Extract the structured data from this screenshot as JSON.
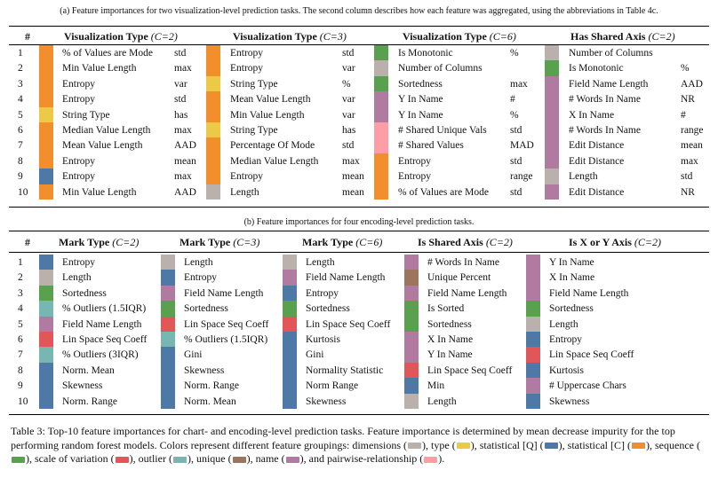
{
  "colors": {
    "dimensions": "#bab0ac",
    "type": "#edc948",
    "statistical_q": "#4e79a7",
    "statistical_c": "#f28e2b",
    "sequence": "#59a14f",
    "scale_of_variation": "#e15759",
    "outlier": "#76b7b2",
    "unique": "#9c755f",
    "name": "#b07aa1",
    "pairwise_relationship": "#ff9da7"
  },
  "table_a": {
    "caption": "(a) Feature importances for two visualization-level prediction tasks. The second column describes how each feature was aggregated, using the abbreviations in Table 4c.",
    "num_header": "#",
    "rank_labels": [
      "1",
      "2",
      "3",
      "4",
      "5",
      "6",
      "7",
      "8",
      "9",
      "10"
    ],
    "columns": [
      {
        "title": "Visualization Type",
        "param": "(C=2)",
        "rows": [
          {
            "c": "statistical_c",
            "f": "% of Values are Mode",
            "a": "std"
          },
          {
            "c": "statistical_c",
            "f": "Min Value Length",
            "a": "max"
          },
          {
            "c": "statistical_c",
            "f": "Entropy",
            "a": "var"
          },
          {
            "c": "statistical_c",
            "f": "Entropy",
            "a": "std"
          },
          {
            "c": "type",
            "f": "String Type",
            "a": "has"
          },
          {
            "c": "statistical_c",
            "f": "Median Value Length",
            "a": "max"
          },
          {
            "c": "statistical_c",
            "f": "Mean Value Length",
            "a": "AAD"
          },
          {
            "c": "statistical_c",
            "f": "Entropy",
            "a": "mean"
          },
          {
            "c": "statistical_q",
            "f": "Entropy",
            "a": "max"
          },
          {
            "c": "statistical_c",
            "f": "Min Value Length",
            "a": "AAD"
          }
        ]
      },
      {
        "title": "Visualization Type",
        "param": "(C=3)",
        "rows": [
          {
            "c": "statistical_c",
            "f": "Entropy",
            "a": "std"
          },
          {
            "c": "statistical_c",
            "f": "Entropy",
            "a": "var"
          },
          {
            "c": "type",
            "f": "String Type",
            "a": "%"
          },
          {
            "c": "statistical_c",
            "f": "Mean Value Length",
            "a": "var"
          },
          {
            "c": "statistical_c",
            "f": "Min Value Length",
            "a": "var"
          },
          {
            "c": "type",
            "f": "String Type",
            "a": "has"
          },
          {
            "c": "statistical_c",
            "f": "Percentage Of Mode",
            "a": "std"
          },
          {
            "c": "statistical_c",
            "f": "Median Value Length",
            "a": "max"
          },
          {
            "c": "statistical_c",
            "f": "Entropy",
            "a": "mean"
          },
          {
            "c": "dimensions",
            "f": "Length",
            "a": "mean"
          }
        ]
      },
      {
        "title": "Visualization Type",
        "param": "(C=6)",
        "rows": [
          {
            "c": "sequence",
            "f": "Is Monotonic",
            "a": "%"
          },
          {
            "c": "dimensions",
            "f": "Number of Columns",
            "a": ""
          },
          {
            "c": "sequence",
            "f": "Sortedness",
            "a": "max"
          },
          {
            "c": "name",
            "f": "Y In Name",
            "a": "#"
          },
          {
            "c": "name",
            "f": "Y In Name",
            "a": "%"
          },
          {
            "c": "pairwise_relationship",
            "f": "# Shared Unique Vals",
            "a": "std"
          },
          {
            "c": "pairwise_relationship",
            "f": "# Shared Values",
            "a": "MAD"
          },
          {
            "c": "statistical_c",
            "f": "Entropy",
            "a": "std"
          },
          {
            "c": "statistical_c",
            "f": "Entropy",
            "a": "range"
          },
          {
            "c": "statistical_c",
            "f": "% of Values are Mode",
            "a": "std"
          }
        ]
      },
      {
        "title": "Has Shared Axis",
        "param": "(C=2)",
        "rows": [
          {
            "c": "dimensions",
            "f": "Number of Columns",
            "a": ""
          },
          {
            "c": "sequence",
            "f": "Is Monotonic",
            "a": "%"
          },
          {
            "c": "name",
            "f": "Field Name Length",
            "a": "AAD"
          },
          {
            "c": "name",
            "f": "# Words In Name",
            "a": "NR"
          },
          {
            "c": "name",
            "f": "X In Name",
            "a": "#"
          },
          {
            "c": "name",
            "f": "# Words In Name",
            "a": "range"
          },
          {
            "c": "name",
            "f": "Edit Distance",
            "a": "mean"
          },
          {
            "c": "name",
            "f": "Edit Distance",
            "a": "max"
          },
          {
            "c": "dimensions",
            "f": "Length",
            "a": "std"
          },
          {
            "c": "name",
            "f": "Edit Distance",
            "a": "NR"
          }
        ]
      }
    ]
  },
  "table_b": {
    "caption": "(b) Feature importances for four encoding-level prediction tasks.",
    "num_header": "#",
    "rank_labels": [
      "1",
      "2",
      "3",
      "4",
      "5",
      "6",
      "7",
      "8",
      "9",
      "10"
    ],
    "columns": [
      {
        "title": "Mark Type",
        "param": "(C=2)",
        "rows": [
          {
            "c": "statistical_q",
            "f": "Entropy"
          },
          {
            "c": "dimensions",
            "f": "Length"
          },
          {
            "c": "sequence",
            "f": "Sortedness"
          },
          {
            "c": "outlier",
            "f": "% Outliers (1.5IQR)"
          },
          {
            "c": "name",
            "f": "Field Name Length"
          },
          {
            "c": "scale_of_variation",
            "f": "Lin Space Seq Coeff"
          },
          {
            "c": "outlier",
            "f": "% Outliers (3IQR)"
          },
          {
            "c": "statistical_q",
            "f": "Norm. Mean"
          },
          {
            "c": "statistical_q",
            "f": "Skewness"
          },
          {
            "c": "statistical_q",
            "f": "Norm. Range"
          }
        ]
      },
      {
        "title": "Mark Type",
        "param": "(C=3)",
        "rows": [
          {
            "c": "dimensions",
            "f": "Length"
          },
          {
            "c": "statistical_q",
            "f": "Entropy"
          },
          {
            "c": "name",
            "f": "Field Name Length"
          },
          {
            "c": "sequence",
            "f": "Sortedness"
          },
          {
            "c": "scale_of_variation",
            "f": "Lin Space Seq Coeff"
          },
          {
            "c": "outlier",
            "f": "% Outliers (1.5IQR)"
          },
          {
            "c": "statistical_q",
            "f": "Gini"
          },
          {
            "c": "statistical_q",
            "f": "Skewness"
          },
          {
            "c": "statistical_q",
            "f": "Norm. Range"
          },
          {
            "c": "statistical_q",
            "f": "Norm. Mean"
          }
        ]
      },
      {
        "title": "Mark Type",
        "param": "(C=6)",
        "rows": [
          {
            "c": "dimensions",
            "f": "Length"
          },
          {
            "c": "name",
            "f": "Field Name Length"
          },
          {
            "c": "statistical_q",
            "f": "Entropy"
          },
          {
            "c": "sequence",
            "f": "Sortedness"
          },
          {
            "c": "scale_of_variation",
            "f": "Lin Space Seq Coeff"
          },
          {
            "c": "statistical_q",
            "f": "Kurtosis"
          },
          {
            "c": "statistical_q",
            "f": "Gini"
          },
          {
            "c": "statistical_q",
            "f": "Normality Statistic"
          },
          {
            "c": "statistical_q",
            "f": "Norm Range"
          },
          {
            "c": "statistical_q",
            "f": "Skewness"
          }
        ]
      },
      {
        "title": "Is Shared Axis",
        "param": "(C=2)",
        "rows": [
          {
            "c": "name",
            "f": "# Words In Name"
          },
          {
            "c": "unique",
            "f": "Unique Percent"
          },
          {
            "c": "name",
            "f": "Field Name Length"
          },
          {
            "c": "sequence",
            "f": "Is Sorted"
          },
          {
            "c": "sequence",
            "f": "Sortedness"
          },
          {
            "c": "name",
            "f": "X In Name"
          },
          {
            "c": "name",
            "f": "Y In Name"
          },
          {
            "c": "scale_of_variation",
            "f": "Lin Space Seq Coeff"
          },
          {
            "c": "statistical_q",
            "f": "Min"
          },
          {
            "c": "dimensions",
            "f": "Length"
          }
        ]
      },
      {
        "title": "Is X or Y Axis",
        "param": "(C=2)",
        "rows": [
          {
            "c": "name",
            "f": "Y In Name"
          },
          {
            "c": "name",
            "f": "X In Name"
          },
          {
            "c": "name",
            "f": "Field Name Length"
          },
          {
            "c": "sequence",
            "f": "Sortedness"
          },
          {
            "c": "dimensions",
            "f": "Length"
          },
          {
            "c": "statistical_q",
            "f": "Entropy"
          },
          {
            "c": "scale_of_variation",
            "f": "Lin Space Seq Coeff"
          },
          {
            "c": "statistical_q",
            "f": "Kurtosis"
          },
          {
            "c": "name",
            "f": "# Uppercase Chars"
          },
          {
            "c": "statistical_q",
            "f": "Skewness"
          }
        ]
      }
    ]
  },
  "caption": {
    "intro": "Table 3: Top-10 feature importances for chart- and encoding-level prediction tasks. Feature importance is determined by mean decrease impurity for the top performing random forest models. Colors represent different feature groupings: ",
    "legend": [
      {
        "key": "dimensions",
        "label": "dimensions",
        "sep": ", "
      },
      {
        "key": "type",
        "label": "type",
        "sep": ", "
      },
      {
        "key": "statistical_q",
        "label": "statistical [Q]",
        "sep": ", "
      },
      {
        "key": "statistical_c",
        "label": "statistical [C]",
        "sep": ", "
      },
      {
        "key": "sequence",
        "label": "sequence",
        "sep": ", "
      },
      {
        "key": "scale_of_variation",
        "label": "scale of variation",
        "sep": ", "
      },
      {
        "key": "outlier",
        "label": "outlier",
        "sep": ", "
      },
      {
        "key": "unique",
        "label": "unique",
        "sep": ", "
      },
      {
        "key": "name",
        "label": "name",
        "sep": ", and "
      },
      {
        "key": "pairwise_relationship",
        "label": "pairwise-relationship",
        "sep": "."
      }
    ]
  }
}
